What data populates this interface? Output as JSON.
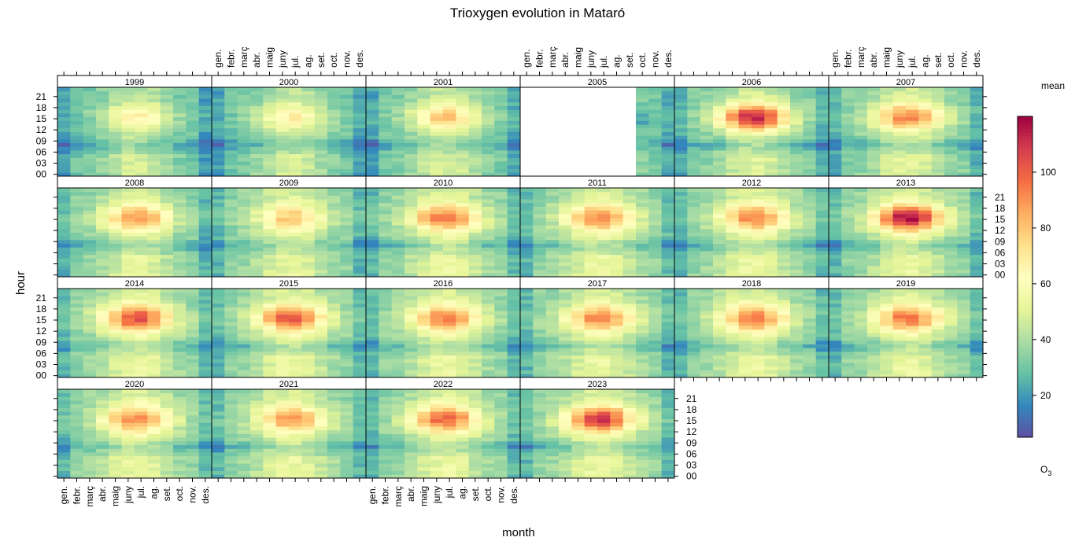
{
  "chart_data": {
    "type": "heatmap",
    "title": "Trioxygen evolution in Mataró",
    "xlabel": "month",
    "ylabel": "hour",
    "months": [
      "gen.",
      "febr.",
      "març",
      "abr.",
      "maig",
      "juny",
      "jul.",
      "ag.",
      "set.",
      "oct.",
      "nov.",
      "des."
    ],
    "hour_ticks": [
      "21",
      "18",
      "15",
      "12",
      "09",
      "06",
      "03",
      "00"
    ],
    "panels": [
      "1999",
      "2000",
      "2001",
      "2005",
      "2006",
      "2007",
      "2008",
      "2009",
      "2010",
      "2011",
      "2012",
      "2013",
      "2014",
      "2015",
      "2016",
      "2017",
      "2018",
      "2019",
      "2020",
      "2021",
      "2022",
      "2023"
    ],
    "colorbar": {
      "title": "mean",
      "variable": "O3",
      "variable_base": "O",
      "variable_sub": "3",
      "ticks": [
        "20",
        "40",
        "60",
        "80",
        "100"
      ],
      "range": [
        5,
        120
      ],
      "palette": [
        "#5e4fa2",
        "#3288bd",
        "#66c2a5",
        "#abdda4",
        "#e6f598",
        "#ffffbf",
        "#fee08b",
        "#fdae61",
        "#f46d43",
        "#d53e4f",
        "#9e0142"
      ]
    },
    "annual_peak_mean": {
      "1999": 68,
      "2000": 68,
      "2001": 80,
      "2005": 0,
      "2006": 115,
      "2007": 95,
      "2008": 90,
      "2009": 80,
      "2010": 98,
      "2011": 95,
      "2012": 94,
      "2013": 117,
      "2014": 105,
      "2015": 103,
      "2016": 95,
      "2017": 93,
      "2018": 96,
      "2019": 98,
      "2020": 93,
      "2021": 90,
      "2022": 100,
      "2023": 110
    },
    "missing_months": {
      "2005": [
        "gen.",
        "febr.",
        "març",
        "abr.",
        "maig",
        "juny",
        "jul.",
        "ag.",
        "set."
      ]
    },
    "grid": false
  }
}
